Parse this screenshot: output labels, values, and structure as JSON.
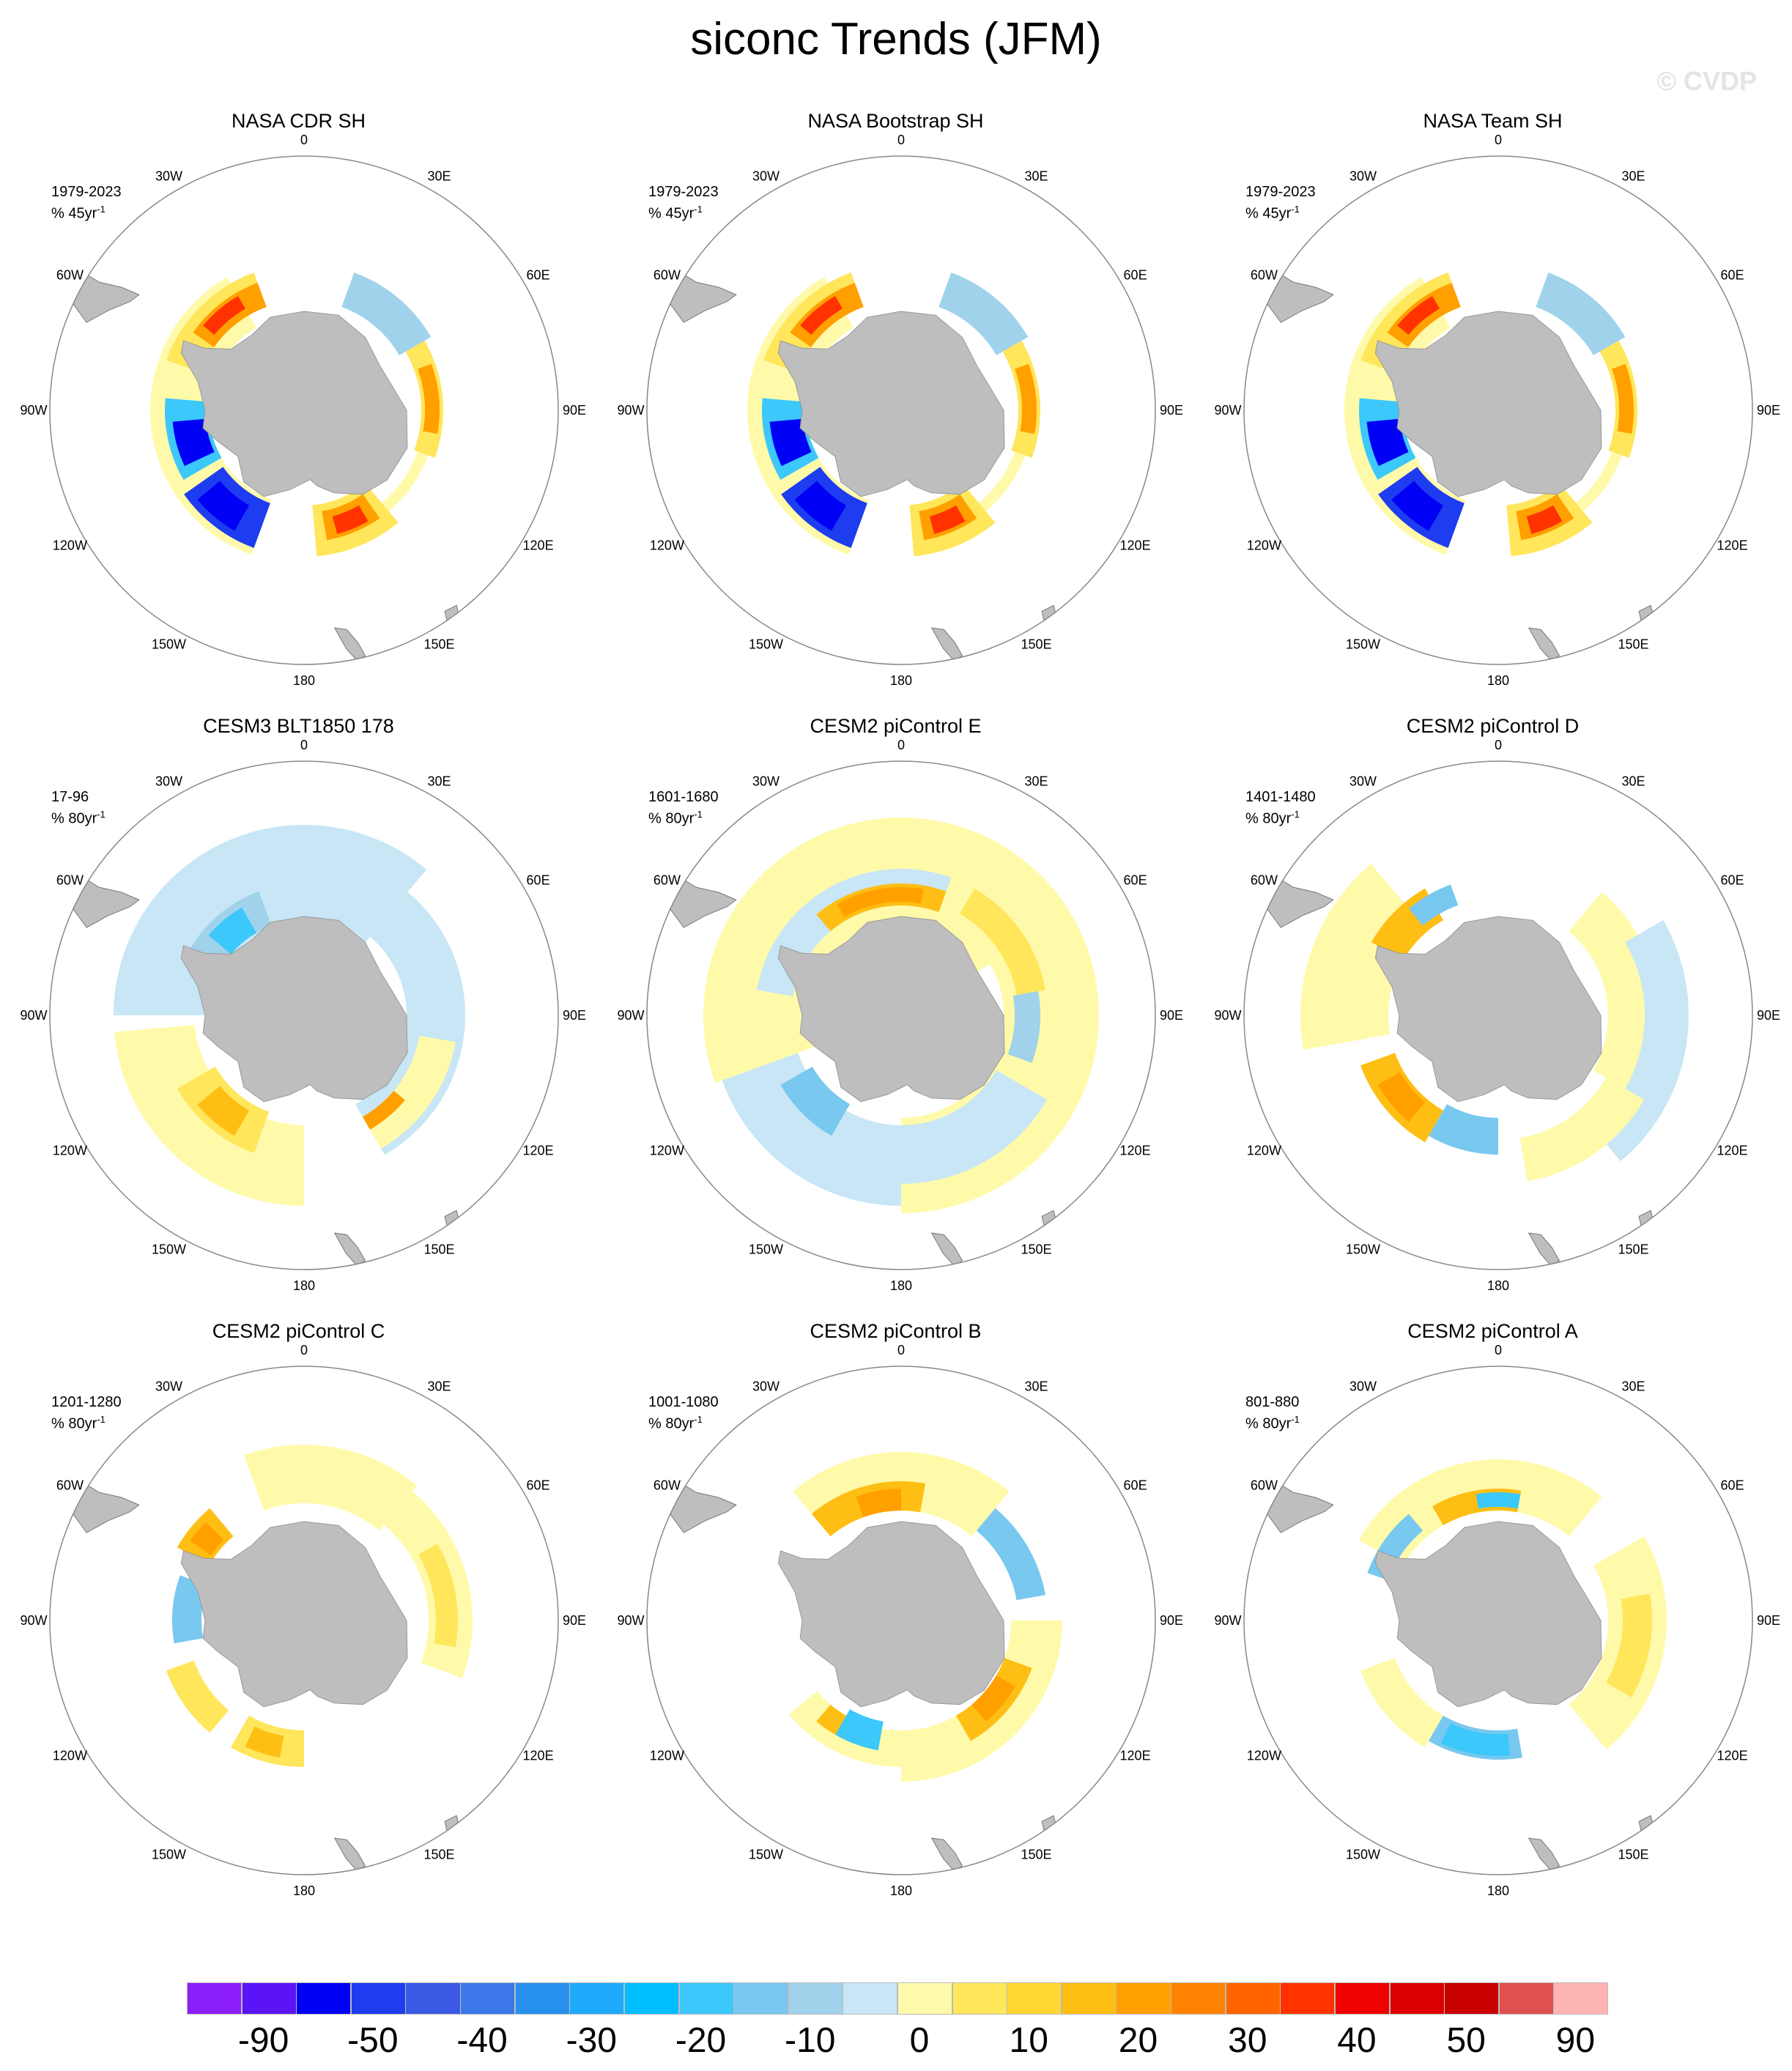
{
  "title": "siconc Trends (JFM)",
  "watermark": "© CVDP",
  "panels": [
    {
      "title": "NASA CDR SH",
      "period": "1979-2023",
      "units": "% 45yr",
      "pattern": "obs"
    },
    {
      "title": "NASA Bootstrap SH",
      "period": "1979-2023",
      "units": "% 45yr",
      "pattern": "obs"
    },
    {
      "title": "NASA Team SH",
      "period": "1979-2023",
      "units": "% 45yr",
      "pattern": "obs"
    },
    {
      "title": "CESM3 BLT1850 178",
      "period": "17-96",
      "units": "% 80yr",
      "pattern": "blt"
    },
    {
      "title": "CESM2 piControl E",
      "period": "1601-1680",
      "units": "% 80yr",
      "pattern": "pi1"
    },
    {
      "title": "CESM2 piControl D",
      "period": "1401-1480",
      "units": "% 80yr",
      "pattern": "pi2"
    },
    {
      "title": "CESM2 piControl C",
      "period": "1201-1280",
      "units": "% 80yr",
      "pattern": "pi3"
    },
    {
      "title": "CESM2 piControl B",
      "period": "1001-1080",
      "units": "% 80yr",
      "pattern": "pi4"
    },
    {
      "title": "CESM2 piControl A",
      "period": "801-880",
      "units": "% 80yr",
      "pattern": "pi5"
    }
  ],
  "units_superscript": "-1",
  "longitude_labels": [
    "0",
    "30E",
    "60E",
    "90E",
    "120E",
    "150E",
    "180",
    "150W",
    "120W",
    "90W",
    "60W",
    "30W"
  ],
  "colorbar": {
    "colors": [
      "#8c1efa",
      "#5a14f5",
      "#0000f5",
      "#1e3cf0",
      "#3c5ae6",
      "#3c78ea",
      "#2891f0",
      "#1eaafa",
      "#00beff",
      "#3cc8fa",
      "#78c8f0",
      "#a0d2ec",
      "#c8e6f5",
      "#fffaaa",
      "#ffe65a",
      "#ffd732",
      "#ffbe14",
      "#ffa000",
      "#ff8200",
      "#ff6400",
      "#ff3200",
      "#f00000",
      "#dc0000",
      "#c80000",
      "#e15050",
      "#ffb4b4"
    ],
    "labels": [
      "-90",
      "-50",
      "-40",
      "-30",
      "-20",
      "-10",
      "0",
      "10",
      "20",
      "30",
      "40",
      "50",
      "90"
    ]
  }
}
